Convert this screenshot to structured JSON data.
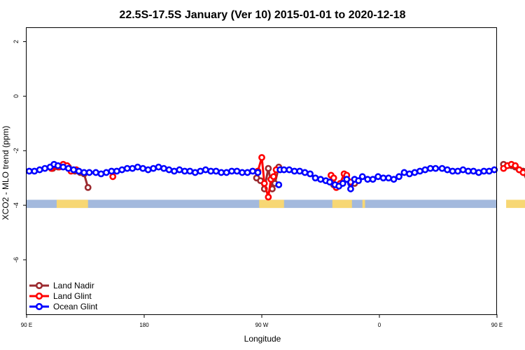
{
  "chart_data": {
    "type": "line",
    "title": "22.5S-17.5S January (Ver 10)   2015-01-01 to 2020-12-18",
    "xlabel": "Longitude",
    "ylabel": "XCO2 - MLO trend (ppm)",
    "xlim": [
      90,
      450
    ],
    "ylim": [
      -8,
      2.5
    ],
    "x_ticks": [
      {
        "value": 90,
        "label": "90 E"
      },
      {
        "value": 180,
        "label": "180"
      },
      {
        "value": 270,
        "label": "90 W"
      },
      {
        "value": 360,
        "label": "0"
      },
      {
        "value": 450,
        "label": "90 E"
      },
      {
        "value": 540,
        "label": "180"
      }
    ],
    "y_ticks": [
      {
        "value": 2,
        "label": "2"
      },
      {
        "value": 0,
        "label": "0"
      },
      {
        "value": -2,
        "label": "-2"
      },
      {
        "value": -4,
        "label": "-4"
      },
      {
        "value": -6,
        "label": "-6"
      }
    ],
    "legend_position": "bottom-left",
    "surface_band": {
      "y_range": [
        -4.1,
        -3.8
      ],
      "ocean_color": "#a3b9dd",
      "land_color": "#f7d774",
      "land_spans": [
        [
          113,
          137
        ],
        [
          268,
          287
        ],
        [
          324,
          339
        ],
        [
          347,
          349
        ],
        [
          457,
          481
        ]
      ]
    },
    "series": [
      {
        "name": "Land Nadir",
        "color": "#9b2a2f",
        "segments": [
          [
            [
              110,
              -2.65
            ],
            [
              114,
              -2.6
            ],
            [
              118,
              -2.55
            ],
            [
              122,
              -2.6
            ],
            [
              127,
              -2.75
            ],
            [
              131,
              -2.8
            ],
            [
              134,
              -2.85
            ],
            [
              137,
              -3.35
            ]
          ],
          [
            [
              266,
              -3.0
            ],
            [
              269,
              -3.1
            ],
            [
              272,
              -3.4
            ],
            [
              275,
              -2.65
            ],
            [
              278,
              -3.4
            ],
            [
              280,
              -3.2
            ],
            [
              283,
              -2.6
            ]
          ],
          [
            [
              325,
              -3.25
            ],
            [
              328,
              -3.3
            ],
            [
              331,
              -3.2
            ],
            [
              335,
              -3.05
            ],
            [
              338,
              -3.2
            ],
            [
              341,
              -3.2
            ]
          ],
          [
            [
              455,
              -2.5
            ],
            [
              458,
              -2.55
            ],
            [
              461,
              -2.55
            ],
            [
              464,
              -2.6
            ],
            [
              467,
              -2.7
            ],
            [
              470,
              -2.75
            ],
            [
              475,
              -3.35
            ]
          ]
        ]
      },
      {
        "name": "Land Glint",
        "color": "#ff0000",
        "segments": [
          [
            [
              109,
              -2.65
            ],
            [
              112,
              -2.55
            ],
            [
              115,
              -2.6
            ],
            [
              118,
              -2.5
            ],
            [
              121,
              -2.55
            ],
            [
              124,
              -2.75
            ],
            [
              128,
              -2.7
            ]
          ],
          [
            [
              156,
              -2.95
            ]
          ],
          [
            [
              267,
              -2.75
            ],
            [
              270,
              -2.25
            ],
            [
              272,
              -3.2
            ],
            [
              275,
              -3.7
            ],
            [
              277,
              -3.05
            ],
            [
              279,
              -2.95
            ],
            [
              281,
              -2.7
            ]
          ],
          [
            [
              323,
              -2.9
            ],
            [
              325,
              -3.0
            ],
            [
              327,
              -3.35
            ],
            [
              330,
              -3.2
            ],
            [
              333,
              -2.85
            ],
            [
              335,
              -2.9
            ],
            [
              338,
              -3.15
            ]
          ],
          [
            [
              455,
              -2.65
            ],
            [
              458,
              -2.55
            ],
            [
              461,
              -2.5
            ],
            [
              464,
              -2.55
            ],
            [
              467,
              -2.7
            ],
            [
              470,
              -2.8
            ]
          ]
        ]
      },
      {
        "name": "Ocean Glint",
        "color": "#0000ff",
        "segments": [
          [
            [
              92,
              -2.75
            ],
            [
              96,
              -2.75
            ],
            [
              100,
              -2.7
            ],
            [
              104,
              -2.65
            ],
            [
              108,
              -2.6
            ],
            [
              111,
              -2.5
            ],
            [
              114,
              -2.55
            ],
            [
              118,
              -2.6
            ],
            [
              122,
              -2.65
            ],
            [
              126,
              -2.7
            ],
            [
              130,
              -2.75
            ],
            [
              134,
              -2.8
            ],
            [
              138,
              -2.8
            ],
            [
              143,
              -2.8
            ],
            [
              147,
              -2.85
            ],
            [
              151,
              -2.8
            ],
            [
              155,
              -2.75
            ],
            [
              159,
              -2.75
            ],
            [
              163,
              -2.7
            ],
            [
              167,
              -2.65
            ],
            [
              171,
              -2.65
            ],
            [
              175,
              -2.6
            ],
            [
              179,
              -2.65
            ],
            [
              183,
              -2.7
            ],
            [
              187,
              -2.65
            ],
            [
              191,
              -2.6
            ],
            [
              195,
              -2.65
            ],
            [
              199,
              -2.7
            ],
            [
              203,
              -2.75
            ],
            [
              207,
              -2.7
            ],
            [
              211,
              -2.75
            ],
            [
              215,
              -2.75
            ],
            [
              219,
              -2.8
            ],
            [
              223,
              -2.75
            ],
            [
              227,
              -2.7
            ],
            [
              231,
              -2.75
            ],
            [
              235,
              -2.75
            ],
            [
              239,
              -2.8
            ],
            [
              243,
              -2.8
            ],
            [
              247,
              -2.75
            ],
            [
              251,
              -2.75
            ],
            [
              255,
              -2.8
            ],
            [
              259,
              -2.8
            ],
            [
              263,
              -2.75
            ],
            [
              267,
              -2.8
            ]
          ],
          [
            [
              283,
              -3.25
            ]
          ],
          [
            [
              284,
              -2.7
            ],
            [
              287,
              -2.7
            ],
            [
              291,
              -2.7
            ],
            [
              295,
              -2.75
            ],
            [
              299,
              -2.75
            ],
            [
              303,
              -2.8
            ],
            [
              307,
              -2.85
            ],
            [
              311,
              -3.0
            ],
            [
              315,
              -3.05
            ],
            [
              319,
              -3.1
            ],
            [
              322,
              -3.15
            ],
            [
              326,
              -3.25
            ],
            [
              329,
              -3.3
            ],
            [
              332,
              -3.2
            ],
            [
              335,
              -3.05
            ],
            [
              338,
              -3.4
            ],
            [
              341,
              -3.05
            ],
            [
              344,
              -3.1
            ],
            [
              347,
              -2.95
            ],
            [
              351,
              -3.05
            ],
            [
              355,
              -3.05
            ],
            [
              359,
              -2.95
            ],
            [
              363,
              -3.0
            ],
            [
              367,
              -3.0
            ],
            [
              371,
              -3.05
            ],
            [
              375,
              -2.95
            ],
            [
              379,
              -2.8
            ],
            [
              383,
              -2.85
            ],
            [
              387,
              -2.8
            ],
            [
              391,
              -2.75
            ],
            [
              395,
              -2.7
            ],
            [
              399,
              -2.65
            ],
            [
              403,
              -2.65
            ],
            [
              408,
              -2.65
            ],
            [
              412,
              -2.7
            ],
            [
              416,
              -2.75
            ],
            [
              420,
              -2.75
            ],
            [
              424,
              -2.7
            ],
            [
              428,
              -2.75
            ],
            [
              432,
              -2.75
            ],
            [
              436,
              -2.8
            ],
            [
              440,
              -2.75
            ],
            [
              444,
              -2.75
            ],
            [
              448,
              -2.7
            ]
          ]
        ]
      }
    ]
  }
}
